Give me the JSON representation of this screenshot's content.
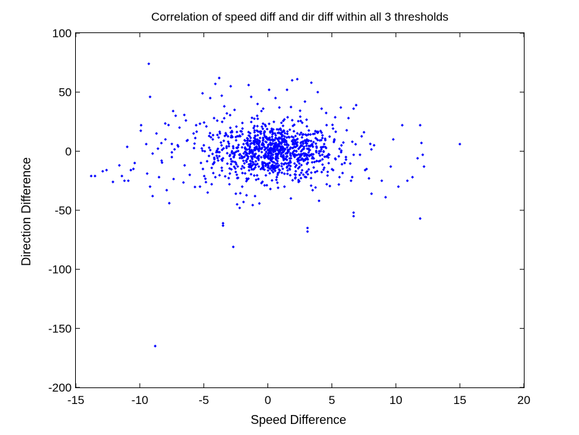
{
  "chart_data": {
    "type": "scatter",
    "title": "Correlation of speed diff and dir diff within all 3 thresholds",
    "xlabel": "Speed Difference",
    "ylabel": "Direction Difference",
    "xlim": [
      -15,
      20
    ],
    "ylim": [
      -200,
      100
    ],
    "xticks": [
      -15,
      -10,
      -5,
      0,
      5,
      10,
      15,
      20
    ],
    "yticks": [
      -200,
      -150,
      -100,
      -50,
      0,
      50,
      100
    ],
    "xtick_labels": [
      "-15",
      "-10",
      "-5",
      "0",
      "5",
      "10",
      "15",
      "20"
    ],
    "ytick_labels": [
      "-200",
      "-150",
      "-100",
      "-50",
      "0",
      "50",
      "100"
    ],
    "grid": false,
    "marker_color": "#0000ff",
    "series": [
      {
        "values": [
          [
            -9.3,
            74
          ],
          [
            -9.2,
            46
          ],
          [
            -8.8,
            -165
          ],
          [
            15.0,
            6
          ],
          [
            11.9,
            -57
          ],
          [
            -3.5,
            -61
          ],
          [
            -3.5,
            -63
          ],
          [
            -2.7,
            -81
          ],
          [
            3.1,
            -65
          ],
          [
            3.1,
            -68
          ],
          [
            6.7,
            -52
          ],
          [
            6.7,
            -55
          ],
          [
            -13.8,
            -21
          ],
          [
            -13.5,
            -21
          ],
          [
            -12.9,
            -17
          ],
          [
            -12.6,
            -16
          ],
          [
            -12.1,
            -26
          ],
          [
            -11.4,
            -21
          ],
          [
            -11.2,
            -25
          ],
          [
            -10.9,
            -25
          ],
          [
            -10.7,
            -16
          ],
          [
            -10.5,
            -15
          ],
          [
            -11.6,
            -12
          ],
          [
            -10.4,
            -10
          ],
          [
            -9.9,
            22
          ],
          [
            -9.2,
            -30
          ],
          [
            -9.0,
            -38
          ],
          [
            -8.5,
            -22
          ],
          [
            -7.9,
            -33
          ],
          [
            -7.7,
            -44
          ],
          [
            -7.4,
            34
          ],
          [
            -7.2,
            30
          ],
          [
            -6.9,
            20
          ],
          [
            -6.4,
            26
          ],
          [
            -5.6,
            22
          ],
          [
            -5.1,
            49
          ],
          [
            -4.8,
            21
          ],
          [
            -4.5,
            45
          ],
          [
            -4.2,
            28
          ],
          [
            -4.1,
            57
          ],
          [
            -3.8,
            62
          ],
          [
            -3.6,
            47
          ],
          [
            -3.4,
            38
          ],
          [
            -3.2,
            32
          ],
          [
            -2.9,
            55
          ],
          [
            -2.6,
            35
          ],
          [
            -2.4,
            -45
          ],
          [
            -2.2,
            -48
          ],
          [
            -1.9,
            -43
          ],
          [
            -1.5,
            56
          ],
          [
            -1.3,
            46
          ],
          [
            -0.8,
            40
          ],
          [
            -0.5,
            34
          ],
          [
            0.1,
            52
          ],
          [
            0.6,
            45
          ],
          [
            0.9,
            37
          ],
          [
            1.5,
            52
          ],
          [
            1.9,
            60
          ],
          [
            2.3,
            61
          ],
          [
            2.9,
            42
          ],
          [
            3.4,
            58
          ],
          [
            3.9,
            50
          ],
          [
            4.2,
            36
          ],
          [
            5.7,
            37
          ],
          [
            6.3,
            28
          ],
          [
            6.7,
            36
          ],
          [
            6.9,
            39
          ],
          [
            7.2,
            -3
          ],
          [
            7.6,
            -16
          ],
          [
            7.9,
            -23
          ],
          [
            8.1,
            -36
          ],
          [
            8.3,
            5
          ],
          [
            8.9,
            -25
          ],
          [
            9.2,
            -39
          ],
          [
            9.6,
            -13
          ],
          [
            9.8,
            10
          ],
          [
            10.2,
            -30
          ],
          [
            10.5,
            22
          ],
          [
            10.9,
            -25
          ],
          [
            11.3,
            -22
          ],
          [
            11.7,
            -6
          ],
          [
            11.9,
            22
          ],
          [
            12.0,
            7
          ],
          [
            12.2,
            -13
          ],
          [
            12.1,
            -3
          ],
          [
            -5.8,
            15
          ],
          [
            -6.1,
            -20
          ],
          [
            -6.5,
            -12
          ],
          [
            -7.0,
            4
          ],
          [
            -7.5,
            -5
          ],
          [
            -8.0,
            10
          ],
          [
            -8.3,
            -8
          ],
          [
            -8.7,
            15
          ],
          [
            -9.0,
            -2
          ],
          [
            -9.5,
            6
          ],
          [
            -5.3,
            -30
          ],
          [
            -4.7,
            -35
          ],
          [
            -4.1,
            -22
          ],
          [
            -3.6,
            -14
          ],
          [
            -3.0,
            -28
          ],
          [
            -2.5,
            -36
          ],
          [
            -2.0,
            -30
          ],
          [
            -1.6,
            -24
          ],
          [
            -1.0,
            -38
          ],
          [
            -0.5,
            -27
          ],
          [
            0.2,
            -32
          ],
          [
            0.7,
            -22
          ],
          [
            1.3,
            -30
          ],
          [
            1.8,
            -40
          ],
          [
            2.4,
            -26
          ],
          [
            3.0,
            -18
          ],
          [
            3.5,
            -33
          ],
          [
            4.0,
            -42
          ],
          [
            4.6,
            -28
          ],
          [
            5.1,
            -16
          ],
          [
            5.6,
            -22
          ],
          [
            6.0,
            -10
          ],
          [
            6.5,
            -25
          ],
          [
            -5.0,
            5
          ],
          [
            -4.6,
            -4
          ],
          [
            -4.3,
            10
          ],
          [
            -3.9,
            2
          ],
          [
            -3.5,
            -6
          ],
          [
            -3.1,
            8
          ],
          [
            -2.8,
            0
          ],
          [
            -2.5,
            12
          ],
          [
            -2.2,
            -3
          ],
          [
            -1.9,
            6
          ],
          [
            -1.7,
            -8
          ],
          [
            -1.4,
            3
          ],
          [
            -1.2,
            -2
          ],
          [
            -1.0,
            9
          ],
          [
            -0.8,
            -5
          ],
          [
            -0.6,
            2
          ],
          [
            -0.4,
            7
          ],
          [
            -0.2,
            -4
          ],
          [
            0.0,
            1
          ],
          [
            0.2,
            6
          ],
          [
            0.4,
            -3
          ],
          [
            0.6,
            4
          ],
          [
            0.8,
            -6
          ],
          [
            1.0,
            2
          ],
          [
            1.2,
            8
          ],
          [
            1.4,
            -2
          ],
          [
            1.6,
            5
          ],
          [
            1.8,
            -4
          ],
          [
            2.0,
            3
          ],
          [
            2.3,
            -7
          ],
          [
            2.6,
            5
          ],
          [
            2.9,
            -2
          ],
          [
            3.2,
            9
          ],
          [
            3.5,
            -5
          ],
          [
            3.8,
            4
          ],
          [
            4.1,
            -8
          ],
          [
            4.4,
            6
          ],
          [
            4.8,
            -3
          ],
          [
            5.2,
            10
          ],
          [
            5.6,
            2
          ],
          [
            6.1,
            -5
          ],
          [
            6.6,
            8
          ]
        ]
      }
    ]
  }
}
